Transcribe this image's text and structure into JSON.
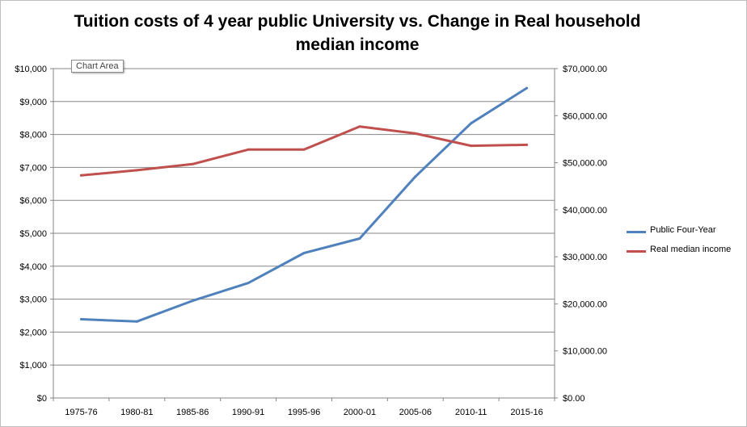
{
  "chart_data": {
    "type": "line",
    "title": "Tuition costs of 4 year public University vs. Change in Real household median income",
    "tooltip": "Chart Area",
    "categories": [
      "1975-76",
      "1980-81",
      "1985-86",
      "1990-91",
      "1995-96",
      "2000-01",
      "2005-06",
      "2010-11",
      "2015-16"
    ],
    "grid": true,
    "legend_position": "right",
    "left_axis": {
      "ylim": [
        0,
        10000
      ],
      "ticks": [
        "$0",
        "$1,000",
        "$2,000",
        "$3,000",
        "$4,000",
        "$5,000",
        "$6,000",
        "$7,000",
        "$8,000",
        "$9,000",
        "$10,000"
      ]
    },
    "right_axis": {
      "ylim": [
        0,
        70000
      ],
      "ticks": [
        "$0.00",
        "$10,000.00",
        "$20,000.00",
        "$30,000.00",
        "$40,000.00",
        "$50,000.00",
        "$60,000.00",
        "$70,000.00"
      ]
    },
    "series": [
      {
        "name": "Public Four-Year",
        "axis": "left",
        "color": "#4f81bd",
        "values": [
          2390,
          2320,
          2950,
          3490,
          4400,
          4840,
          6720,
          8340,
          9410
        ]
      },
      {
        "name": "Real median income",
        "axis": "right",
        "color": "#c0504d",
        "values": [
          47300,
          48400,
          49700,
          52800,
          52800,
          57700,
          56200,
          53600,
          53800
        ]
      }
    ]
  }
}
